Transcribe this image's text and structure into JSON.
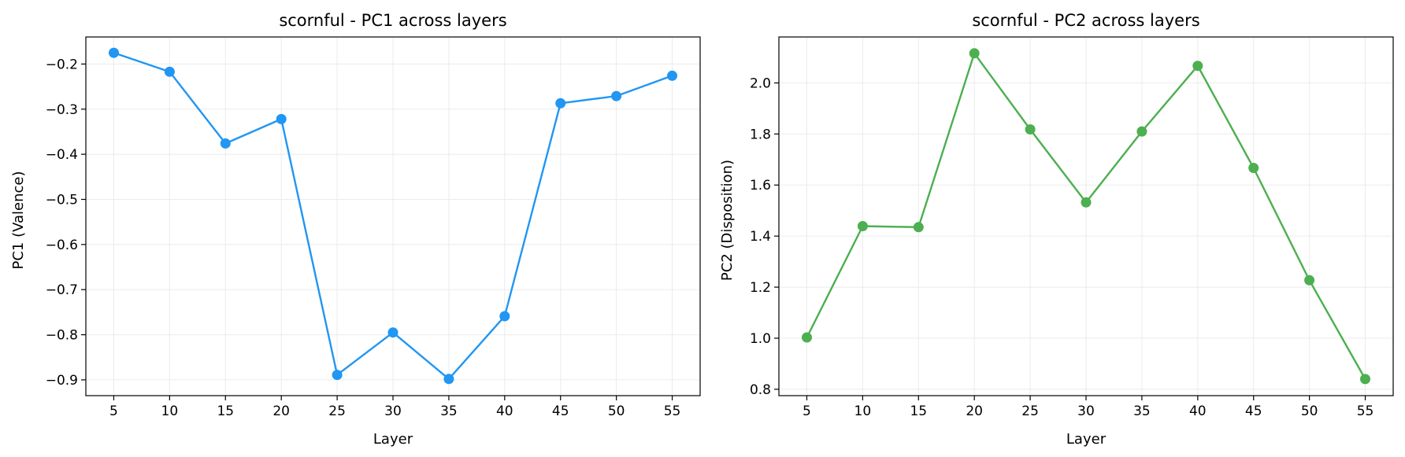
{
  "chart_data": [
    {
      "type": "line",
      "title": "scornful - PC1 across layers",
      "xlabel": "Layer",
      "ylabel": "PC1 (Valence)",
      "x": [
        5,
        10,
        15,
        20,
        25,
        30,
        35,
        40,
        45,
        50,
        55
      ],
      "xticks": [
        5,
        10,
        15,
        20,
        25,
        30,
        35,
        40,
        45,
        50,
        55
      ],
      "xlim": [
        2.5,
        57.5
      ],
      "yticks": [
        -0.9,
        -0.8,
        -0.7,
        -0.6,
        -0.5,
        -0.4,
        -0.3,
        -0.2
      ],
      "ytick_labels": [
        "−0.9",
        "−0.8",
        "−0.7",
        "−0.6",
        "−0.5",
        "−0.4",
        "−0.3",
        "−0.2"
      ],
      "ylim": [
        -0.935,
        -0.14
      ],
      "grid": true,
      "series": [
        {
          "color": "#2196F3",
          "values": [
            -0.175,
            -0.217,
            -0.376,
            -0.322,
            -0.889,
            -0.795,
            -0.898,
            -0.759,
            -0.287,
            -0.271,
            -0.226
          ]
        }
      ]
    },
    {
      "type": "line",
      "title": "scornful - PC2 across layers",
      "xlabel": "Layer",
      "ylabel": "PC2 (Disposition)",
      "x": [
        5,
        10,
        15,
        20,
        25,
        30,
        35,
        40,
        45,
        50,
        55
      ],
      "xticks": [
        5,
        10,
        15,
        20,
        25,
        30,
        35,
        40,
        45,
        50,
        55
      ],
      "xlim": [
        2.5,
        57.5
      ],
      "yticks": [
        0.8,
        1.0,
        1.2,
        1.4,
        1.6,
        1.8,
        2.0
      ],
      "ytick_labels": [
        "0.8",
        "1.0",
        "1.2",
        "1.4",
        "1.6",
        "1.8",
        "2.0"
      ],
      "ylim": [
        0.775,
        2.18
      ],
      "grid": true,
      "series": [
        {
          "color": "#4CAF50",
          "values": [
            1.003,
            1.439,
            1.435,
            2.116,
            1.818,
            1.532,
            1.81,
            2.067,
            1.667,
            1.227,
            0.84
          ]
        }
      ]
    }
  ]
}
